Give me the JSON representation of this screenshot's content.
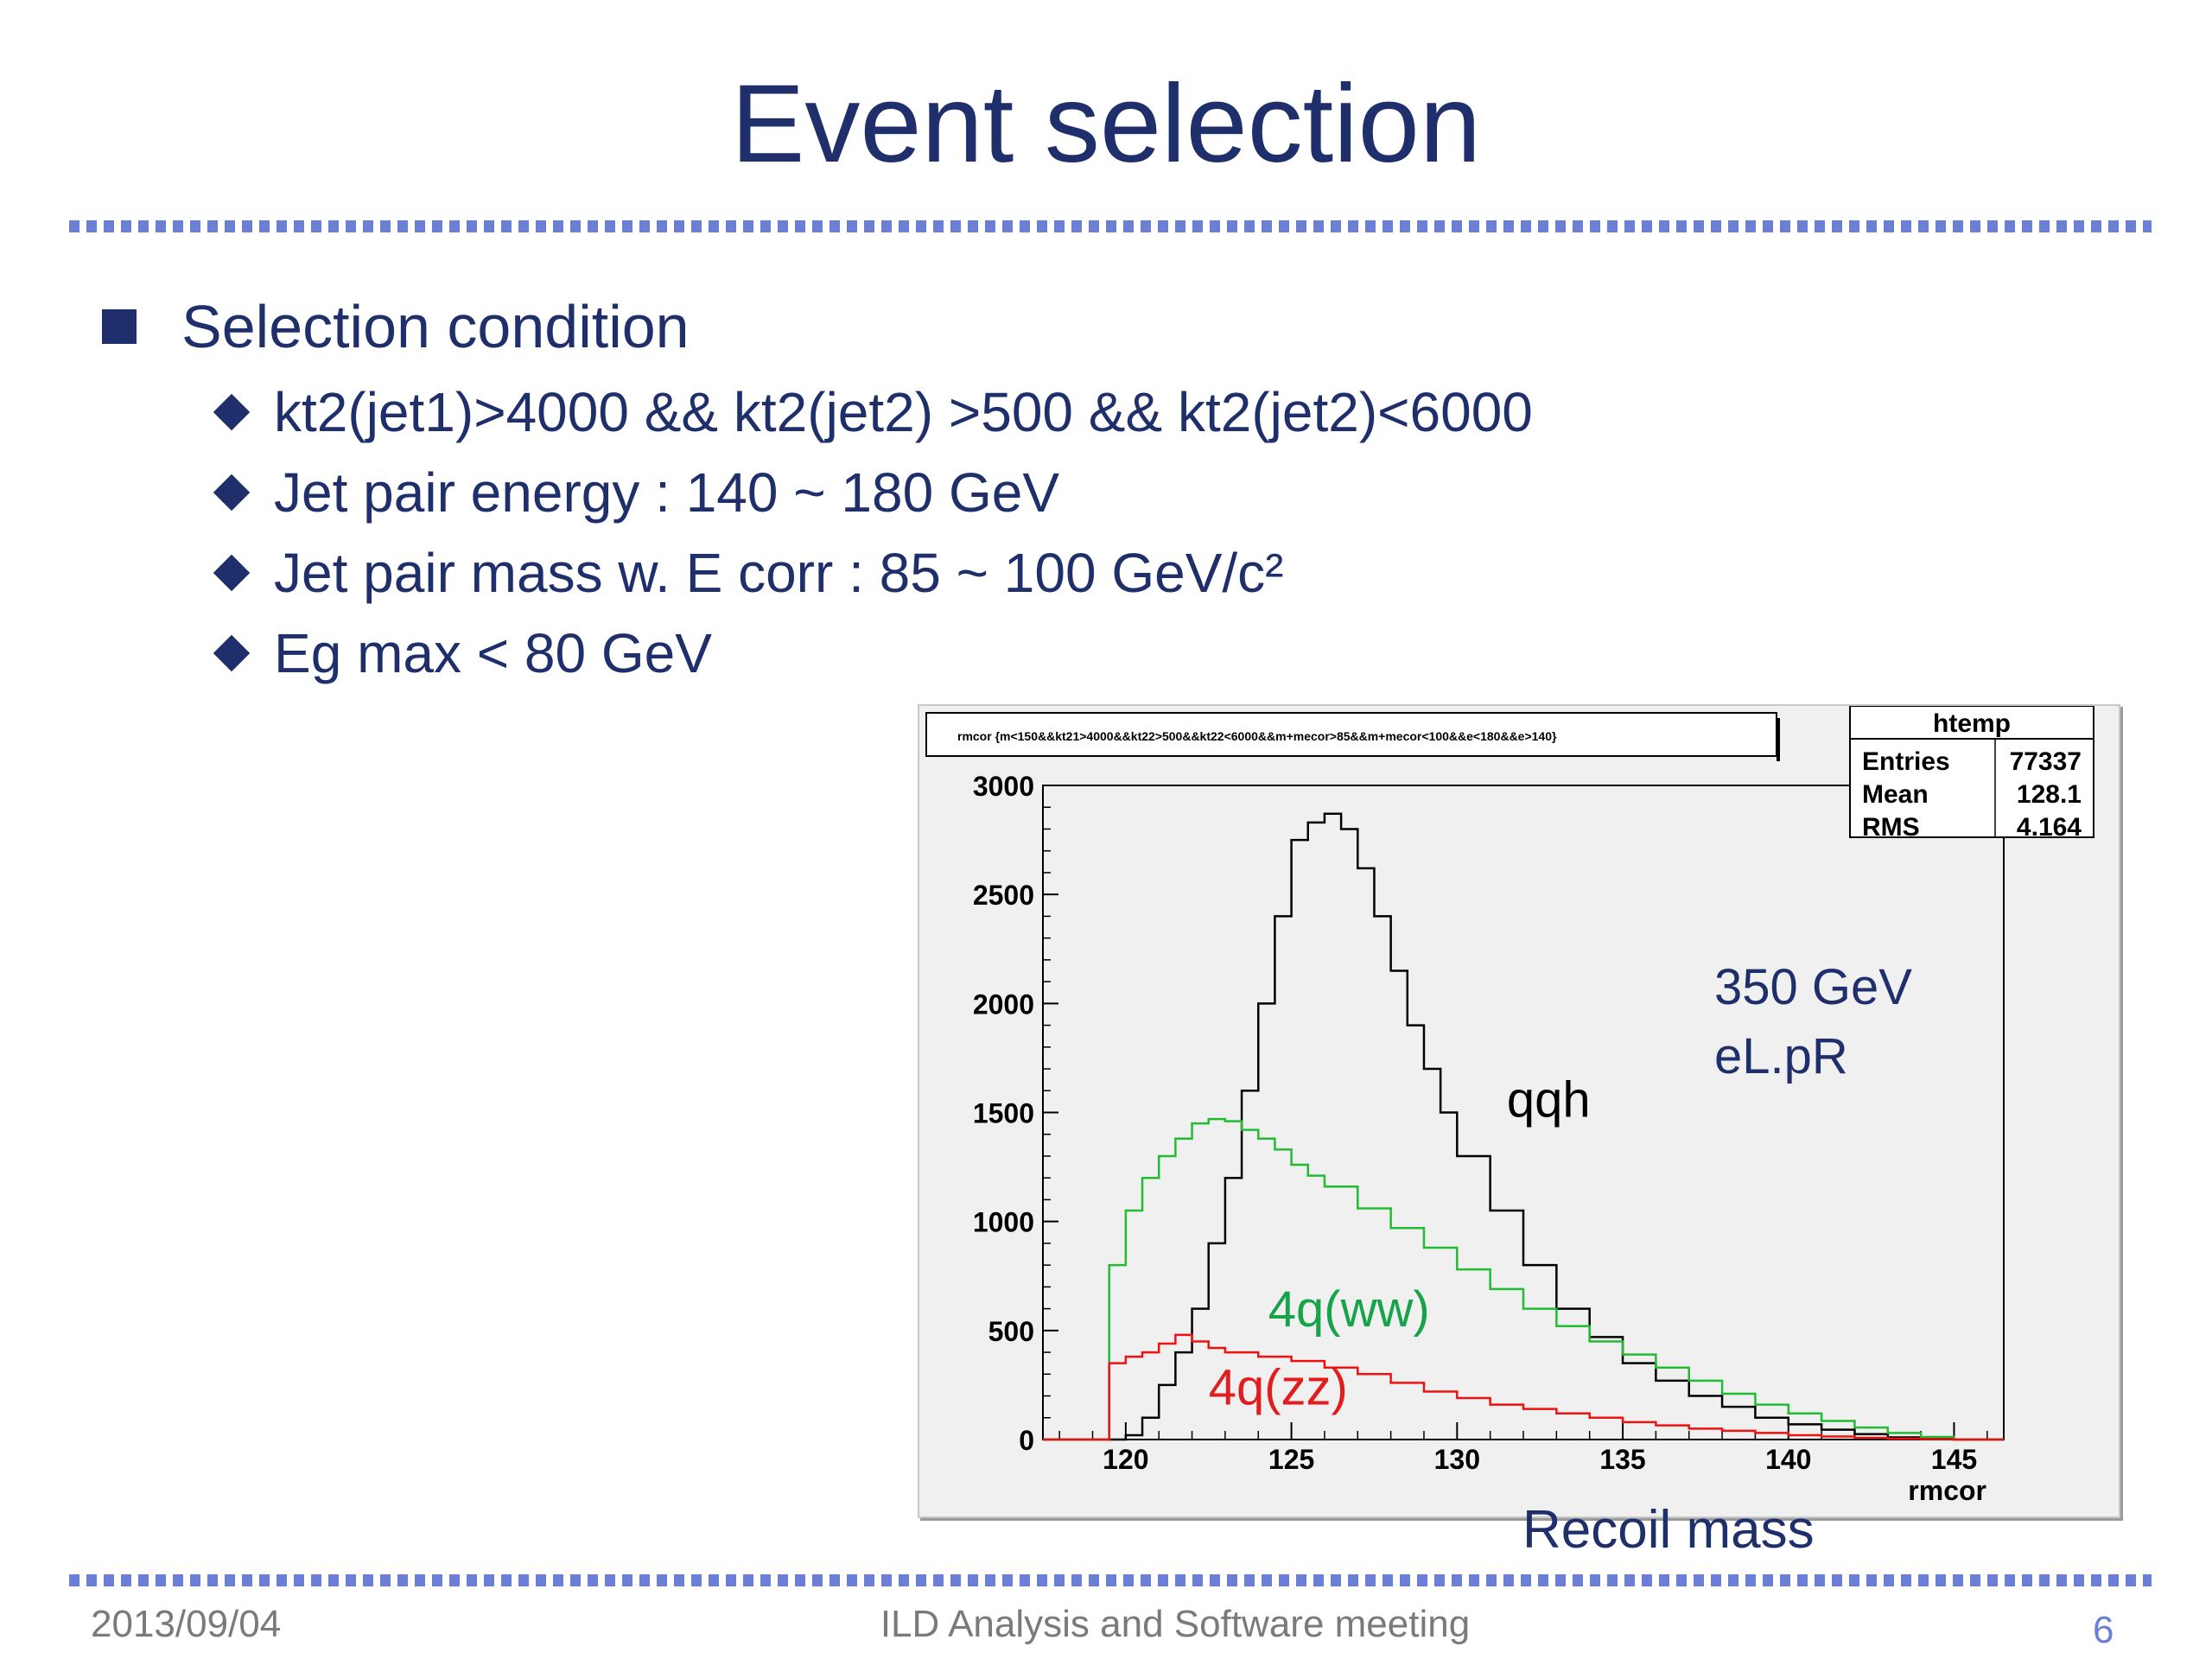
{
  "slide": {
    "title": "Event selection",
    "bullet": "Selection condition",
    "subbullets": [
      "kt2(jet1)>4000  && kt2(jet2) >500 && kt2(jet2)<6000",
      "Jet pair energy : 140 ~ 180 GeV",
      "Jet pair mass w. E corr : 85 ~ 100 GeV/c²",
      "Eg max < 80 GeV"
    ],
    "recoil_label": "Recoil mass",
    "footer": {
      "date": "2013/09/04",
      "meeting": "ILD Analysis and Software meeting",
      "page": "6"
    }
  },
  "chart_data": {
    "type": "line",
    "title": "rmcor {m<150&&kt21>4000&&kt22>500&&kt22<6000&&m+mecor>85&&m+mecor<100&&e<180&&e>140}",
    "xlabel": "rmcor",
    "ylabel": "",
    "xlim": [
      117.5,
      146.5
    ],
    "ylim": [
      0,
      3000
    ],
    "xticks": [
      120,
      125,
      130,
      135,
      140,
      145
    ],
    "yticks": [
      0,
      500,
      1000,
      1500,
      2000,
      2500,
      3000
    ],
    "stats": {
      "name": "htemp",
      "rows": [
        {
          "label": "Entries",
          "value": "77337"
        },
        {
          "label": "Mean",
          "value": "128.1"
        },
        {
          "label": "RMS",
          "value": "4.164"
        }
      ]
    },
    "annotations": [
      "350 GeV",
      "eL.pR"
    ],
    "colors": {
      "qqh": "#000000",
      "ww": "#22bb33",
      "zz": "#ee1111",
      "ww_label": "#16a34a",
      "zz_label": "#e11d1d",
      "annot": "#1f2f6b"
    },
    "series": [
      {
        "name": "qqh",
        "x": [
          119,
          120,
          120.5,
          121,
          121.5,
          122,
          122.5,
          123,
          123.5,
          124,
          124.5,
          125,
          125.5,
          126,
          126.5,
          127,
          127.5,
          128,
          128.5,
          129,
          129.5,
          130,
          131,
          132,
          133,
          134,
          135,
          136,
          137,
          138,
          139,
          140,
          141,
          142,
          143,
          144,
          145
        ],
        "values": [
          0,
          20,
          100,
          250,
          400,
          600,
          900,
          1200,
          1600,
          2000,
          2400,
          2750,
          2830,
          2870,
          2800,
          2620,
          2400,
          2150,
          1900,
          1700,
          1500,
          1300,
          1050,
          800,
          600,
          470,
          350,
          270,
          200,
          150,
          100,
          70,
          45,
          25,
          10,
          3,
          0
        ]
      },
      {
        "name": "4q(ww)",
        "x": [
          119,
          119.5,
          120,
          120.5,
          121,
          121.5,
          122,
          122.5,
          123,
          123.5,
          124,
          124.5,
          125,
          125.5,
          126,
          127,
          128,
          129,
          130,
          131,
          132,
          133,
          134,
          135,
          136,
          137,
          138,
          139,
          140,
          141,
          142,
          143,
          144,
          145
        ],
        "values": [
          0,
          800,
          1050,
          1200,
          1300,
          1380,
          1450,
          1470,
          1460,
          1420,
          1380,
          1330,
          1260,
          1210,
          1160,
          1060,
          970,
          880,
          780,
          690,
          600,
          520,
          450,
          390,
          330,
          270,
          210,
          160,
          120,
          85,
          55,
          30,
          12,
          0
        ]
      },
      {
        "name": "4q(zz)",
        "x": [
          119,
          119.5,
          120,
          120.5,
          121,
          121.5,
          122,
          122.5,
          123,
          124,
          125,
          126,
          127,
          128,
          129,
          130,
          131,
          132,
          133,
          134,
          135,
          136,
          137,
          138,
          139,
          140,
          141,
          142,
          143,
          144,
          145
        ],
        "values": [
          0,
          350,
          380,
          400,
          440,
          480,
          450,
          420,
          400,
          380,
          360,
          330,
          300,
          260,
          220,
          190,
          160,
          140,
          120,
          100,
          80,
          65,
          50,
          40,
          30,
          20,
          14,
          8,
          4,
          2,
          0
        ]
      }
    ],
    "series_labels": [
      {
        "text": "qqh",
        "series": "qqh",
        "x": 131.5,
        "y": 1480
      },
      {
        "text": "4q(ww)",
        "series": "4q(ww)",
        "x": 124.3,
        "y": 520
      },
      {
        "text": "4q(zz)",
        "series": "4q(zz)",
        "x": 122.5,
        "y": 160
      }
    ]
  }
}
